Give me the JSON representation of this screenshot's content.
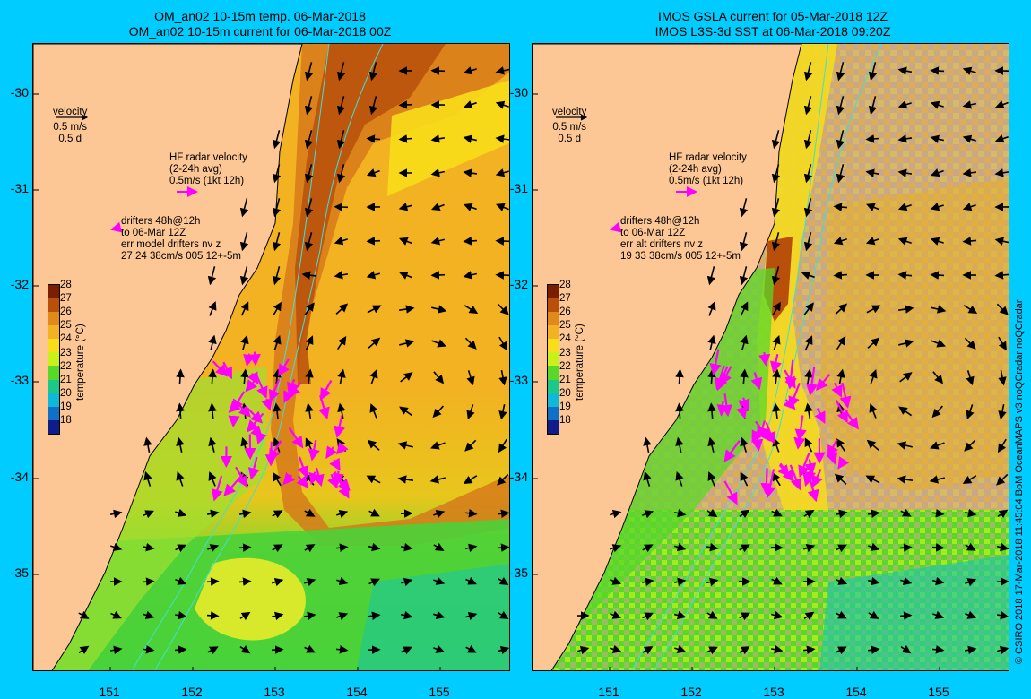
{
  "left_panel": {
    "title_line1": "OM_an02 10-15m temp. 06-Mar-2018",
    "title_line2": "OM_an02 10-15m current for 06-Mar-2018 00Z",
    "velocity_label": "velocity",
    "velocity_scale": "0.5 m/s",
    "velocity_time": "0.5 d",
    "hf_title": "HF radar velocity",
    "hf_avg": "(2-24h avg)",
    "hf_scale": "0.5m/s (1kt 12h)",
    "drifters_line1": "drifters 48h@12h",
    "drifters_line2": "to 06-Mar 12Z",
    "drifters_line3": "err model drifters nv z",
    "drifters_line4": "27 24 38cm/s 005 12+-5m"
  },
  "right_panel": {
    "title_line1": "IMOS GSLA current for 05-Mar-2018 12Z",
    "title_line2": "IMOS L3S-3d SST at 06-Mar-2018 09:20Z",
    "velocity_label": "velocity",
    "velocity_scale": "0.5 m/s",
    "velocity_time": "0.5 d",
    "hf_title": "HF radar velocity",
    "hf_avg": "(2-24h avg)",
    "hf_scale": "0.5m/s (1kt 12h)",
    "drifters_line1": "drifters 48h@12h",
    "drifters_line2": "to 06-Mar 12Z",
    "drifters_line3": "err alt drifters nv z",
    "drifters_line4": "19 33 38cm/s 005 12+-5m"
  },
  "y_ticks": [
    "-30",
    "-31",
    "-32",
    "-33",
    "-34",
    "-35"
  ],
  "x_ticks": [
    "151",
    "152",
    "153",
    "154",
    "155"
  ],
  "colorbar": {
    "title": "temperature (°C)",
    "ticks": [
      "28",
      "27",
      "26",
      "25",
      "24",
      "23",
      "22",
      "21",
      "20",
      "19",
      "18"
    ],
    "colors": [
      "#7a1e00",
      "#b8500c",
      "#e08a1c",
      "#f2b222",
      "#f7dd1a",
      "#c8f01a",
      "#5ad82a",
      "#1cc888",
      "#10b8d8",
      "#1070c8",
      "#101c8a"
    ]
  },
  "colors": {
    "land": "#fdc695",
    "land_right": "#c8a888",
    "drifter": "#ff00ff",
    "isobath": "#40e0d0",
    "background": "#00ccff"
  },
  "credit": "© CSIRO 2018   17-Mar-2018 11:45:04 BoM OceanMAPS v3 noQCradar noQCradar"
}
